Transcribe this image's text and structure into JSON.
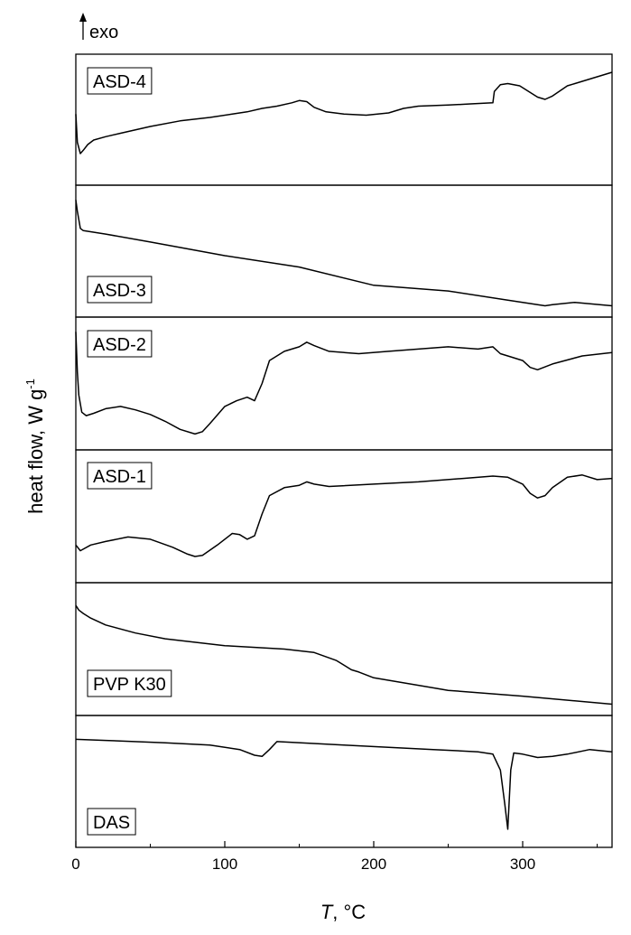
{
  "chart_data": {
    "type": "line",
    "title": "",
    "exo_label": "exo",
    "xlabel_symbol": "T",
    "xlabel_unit": ", °C",
    "ylabel_main": "heat flow, W g",
    "ylabel_sup": "-1",
    "xlim": [
      0,
      360
    ],
    "xticks": [
      0,
      100,
      200,
      300
    ],
    "stacked": true,
    "panels": [
      {
        "name": "ASD-4",
        "ylim": [
          0,
          100
        ],
        "x": [
          0,
          1,
          3,
          5,
          8,
          12,
          20,
          30,
          50,
          70,
          90,
          105,
          115,
          125,
          135,
          145,
          150,
          155,
          160,
          168,
          180,
          195,
          210,
          220,
          230,
          250,
          265,
          280,
          281,
          285,
          290,
          298,
          304,
          310,
          315,
          320,
          330,
          345,
          360
        ],
        "y": [
          55,
          30,
          20,
          23,
          28,
          32,
          35,
          38,
          44,
          49,
          52,
          55,
          57,
          60,
          62,
          65,
          67,
          66,
          61,
          57,
          55,
          54,
          56,
          60,
          62,
          63,
          64,
          65,
          75,
          81,
          82,
          80,
          75,
          70,
          68,
          71,
          80,
          86,
          92
        ]
      },
      {
        "name": "ASD-3",
        "ylim": [
          0,
          100
        ],
        "x": [
          0,
          1,
          3,
          5,
          20,
          50,
          100,
          150,
          200,
          250,
          290,
          310,
          315,
          320,
          335,
          360
        ],
        "y": [
          95,
          85,
          70,
          68,
          65,
          58,
          46,
          36,
          20,
          15,
          7,
          3,
          2,
          3,
          5,
          2
        ]
      },
      {
        "name": "ASD-2",
        "ylim": [
          0,
          100
        ],
        "x": [
          0,
          1,
          2,
          4,
          7,
          12,
          20,
          30,
          40,
          50,
          60,
          70,
          80,
          85,
          90,
          100,
          108,
          115,
          120,
          125,
          130,
          140,
          150,
          155,
          160,
          170,
          190,
          210,
          230,
          250,
          270,
          280,
          285,
          290,
          300,
          305,
          310,
          320,
          340,
          360
        ],
        "y": [
          95,
          60,
          40,
          25,
          22,
          24,
          28,
          30,
          27,
          23,
          17,
          10,
          6,
          8,
          15,
          30,
          35,
          38,
          35,
          50,
          70,
          78,
          82,
          86,
          83,
          78,
          76,
          78,
          80,
          82,
          80,
          82,
          76,
          74,
          70,
          64,
          62,
          67,
          74,
          77
        ]
      },
      {
        "name": "ASD-1",
        "ylim": [
          0,
          100
        ],
        "x": [
          0,
          3,
          10,
          20,
          35,
          50,
          65,
          75,
          80,
          85,
          95,
          105,
          110,
          115,
          120,
          125,
          130,
          140,
          150,
          155,
          160,
          170,
          200,
          230,
          260,
          280,
          290,
          300,
          305,
          310,
          315,
          320,
          330,
          340,
          350,
          360
        ],
        "y": [
          25,
          20,
          25,
          28,
          32,
          30,
          23,
          17,
          15,
          16,
          25,
          35,
          34,
          30,
          33,
          52,
          68,
          75,
          77,
          80,
          78,
          76,
          78,
          80,
          83,
          85,
          84,
          78,
          70,
          66,
          68,
          75,
          84,
          86,
          82,
          83
        ]
      },
      {
        "name": "PVP K30",
        "ylim": [
          0,
          100
        ],
        "x": [
          0,
          2,
          5,
          10,
          20,
          40,
          60,
          100,
          140,
          160,
          175,
          185,
          190,
          200,
          250,
          300,
          360
        ],
        "y": [
          88,
          84,
          81,
          77,
          71,
          64,
          59,
          53,
          50,
          47,
          40,
          32,
          30,
          25,
          14,
          9,
          2
        ]
      },
      {
        "name": "DAS",
        "ylim": [
          0,
          100
        ],
        "x": [
          0,
          20,
          60,
          90,
          110,
          120,
          125,
          130,
          135,
          180,
          240,
          270,
          280,
          285,
          288,
          290,
          292,
          294,
          300,
          310,
          320,
          330,
          345,
          360
        ],
        "y": [
          87,
          86,
          84,
          82,
          78,
          73,
          72,
          78,
          85,
          82,
          78,
          76,
          74,
          60,
          30,
          8,
          60,
          75,
          74,
          71,
          72,
          74,
          78,
          76
        ]
      }
    ]
  }
}
